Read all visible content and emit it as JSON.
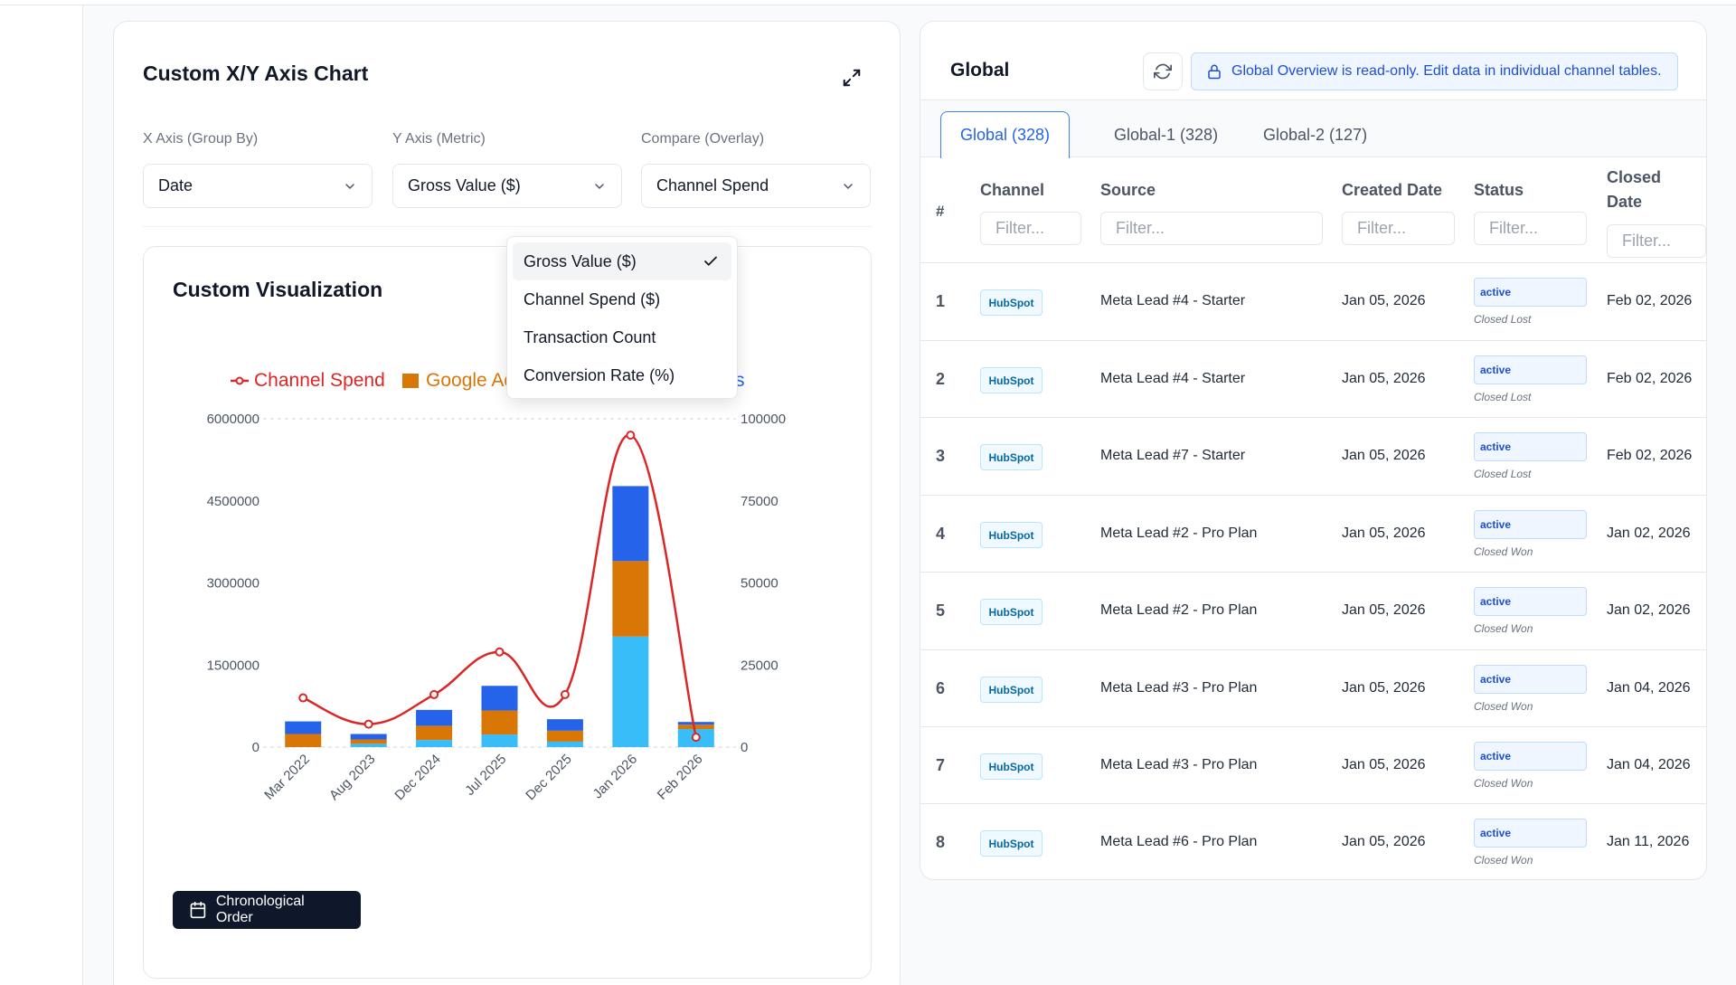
{
  "chart_panel": {
    "title": "Custom X/Y Axis Chart",
    "x_axis": {
      "label": "X Axis (Group By)",
      "value": "Date"
    },
    "y_axis": {
      "label": "Y Axis (Metric)",
      "value": "Gross Value ($)"
    },
    "compare": {
      "label": "Compare (Overlay)",
      "value": "Channel Spend"
    },
    "viz_title": "Custom Visualization",
    "chrono_button": "Chronological Order",
    "dropdown_options": [
      "Gross Value ($)",
      "Channel Spend ($)",
      "Transaction Count",
      "Conversion Rate (%)"
    ],
    "dropdown_selected_index": 0
  },
  "chart_data": {
    "type": "bar",
    "stacked": true,
    "categories": [
      "Mar 2022",
      "Aug 2023",
      "Dec 2024",
      "Jul 2025",
      "Dec 2025",
      "Jan 2026",
      "Feb 2026"
    ],
    "series": [
      {
        "name": "Google Ads",
        "color": "#d97706",
        "values": [
          240000,
          80000,
          260000,
          440000,
          200000,
          1380000,
          80000
        ]
      },
      {
        "name": "HubSpot",
        "color": "#38bdf8",
        "values": [
          0,
          60000,
          130000,
          230000,
          100000,
          2020000,
          330000
        ]
      },
      {
        "name": "Meta Ads",
        "color": "#2563eb",
        "values": [
          230000,
          100000,
          290000,
          450000,
          210000,
          1370000,
          50000
        ]
      }
    ],
    "overlay": {
      "name": "Channel Spend",
      "type": "line",
      "axis": "right",
      "color": "#dc2626",
      "values": [
        15000,
        7000,
        16000,
        29000,
        16000,
        95000,
        3000
      ]
    },
    "y_left": {
      "ticks": [
        "0",
        "1500000",
        "3000000",
        "4500000",
        "6000000"
      ],
      "range": [
        0,
        6000000
      ]
    },
    "y_right": {
      "ticks": [
        "0",
        "25000",
        "50000",
        "75000",
        "100000"
      ],
      "range": [
        0,
        100000
      ]
    },
    "legend": [
      "Channel Spend",
      "Google Ads",
      "HubSpot",
      "Meta Ads"
    ],
    "legend_position": "top",
    "grid": "top dashed line only"
  },
  "table_panel": {
    "title": "Global",
    "readonly_notice": "Global Overview is read-only. Edit data in individual channel tables.",
    "tabs": [
      "Global (328)",
      "Global-1 (328)",
      "Global-2 (127)"
    ],
    "active_tab": 0,
    "columns": {
      "num": "#",
      "channel": "Channel",
      "source": "Source",
      "created": "Created Date",
      "status": "Status",
      "closed_1": "Closed",
      "closed_2": "Date"
    },
    "filter_placeholder": "Filter...",
    "rows": [
      {
        "num": "1",
        "channel": "HubSpot",
        "source": "Meta Lead #4 - Starter",
        "created": "Jan 05, 2026",
        "status": "active",
        "stage": "Closed Lost",
        "closed": "Feb 02, 2026"
      },
      {
        "num": "2",
        "channel": "HubSpot",
        "source": "Meta Lead #4 - Starter",
        "created": "Jan 05, 2026",
        "status": "active",
        "stage": "Closed Lost",
        "closed": "Feb 02, 2026"
      },
      {
        "num": "3",
        "channel": "HubSpot",
        "source": "Meta Lead #7 - Starter",
        "created": "Jan 05, 2026",
        "status": "active",
        "stage": "Closed Lost",
        "closed": "Feb 02, 2026"
      },
      {
        "num": "4",
        "channel": "HubSpot",
        "source": "Meta Lead #2 - Pro Plan",
        "created": "Jan 05, 2026",
        "status": "active",
        "stage": "Closed Won",
        "closed": "Jan 02, 2026"
      },
      {
        "num": "5",
        "channel": "HubSpot",
        "source": "Meta Lead #2 - Pro Plan",
        "created": "Jan 05, 2026",
        "status": "active",
        "stage": "Closed Won",
        "closed": "Jan 02, 2026"
      },
      {
        "num": "6",
        "channel": "HubSpot",
        "source": "Meta Lead #3 - Pro Plan",
        "created": "Jan 05, 2026",
        "status": "active",
        "stage": "Closed Won",
        "closed": "Jan 04, 2026"
      },
      {
        "num": "7",
        "channel": "HubSpot",
        "source": "Meta Lead #3 - Pro Plan",
        "created": "Jan 05, 2026",
        "status": "active",
        "stage": "Closed Won",
        "closed": "Jan 04, 2026"
      },
      {
        "num": "8",
        "channel": "HubSpot",
        "source": "Meta Lead #6 - Pro Plan",
        "created": "Jan 05, 2026",
        "status": "active",
        "stage": "Closed Won",
        "closed": "Jan 11, 2026"
      }
    ]
  }
}
